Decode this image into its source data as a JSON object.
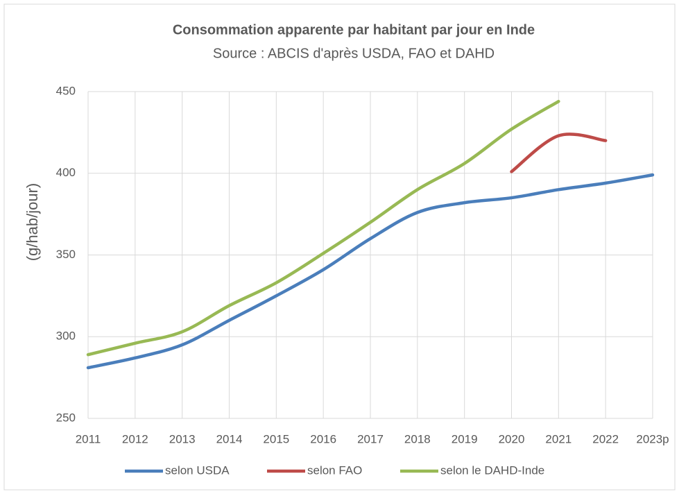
{
  "chart_data": {
    "type": "line",
    "title": "Consommation apparente par habitant par jour en Inde",
    "subtitle": "Source : ABCIS d'après USDA, FAO et DAHD",
    "y_label": "(g/hab/jour)",
    "categories": [
      "2011",
      "2012",
      "2013",
      "2014",
      "2015",
      "2016",
      "2017",
      "2018",
      "2019",
      "2020",
      "2021",
      "2022",
      "2023p"
    ],
    "series": [
      {
        "name": "selon USDA",
        "color": "#4a7ebb",
        "values": [
          281,
          287,
          295,
          310,
          325,
          341,
          360,
          376,
          382,
          385,
          390,
          394,
          399
        ]
      },
      {
        "name": "selon FAO",
        "color": "#be4b48",
        "values": [
          null,
          null,
          null,
          null,
          null,
          null,
          null,
          null,
          null,
          401,
          423,
          420,
          null
        ]
      },
      {
        "name": "selon le DAHD-Inde",
        "color": "#98b954",
        "values": [
          289,
          296,
          303,
          319,
          333,
          351,
          370,
          390,
          406,
          427,
          444,
          null,
          null
        ]
      }
    ],
    "ylim": [
      250,
      450
    ],
    "yticks": [
      250,
      300,
      350,
      400,
      450
    ],
    "grid": true,
    "xgrid": true,
    "legend": "bottom"
  }
}
